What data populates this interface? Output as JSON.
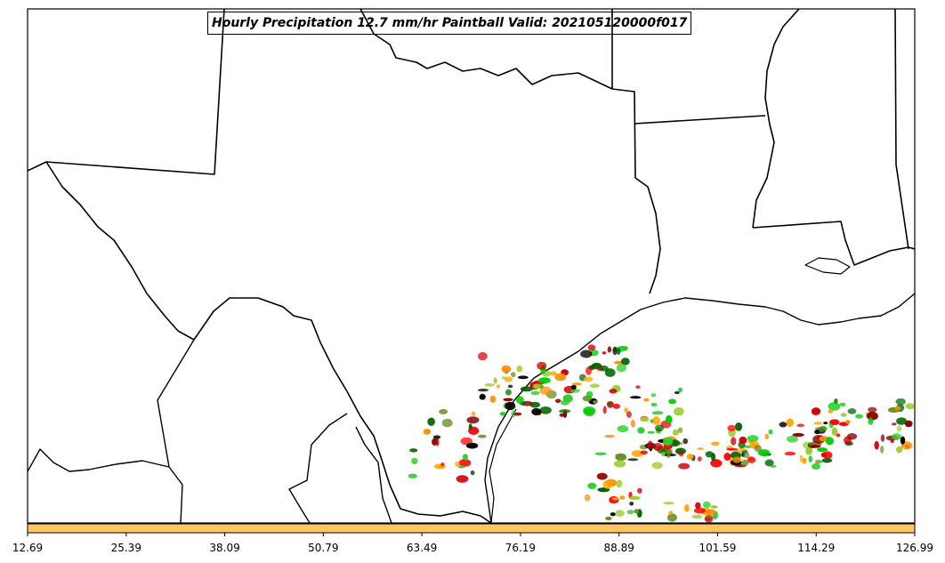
{
  "title": "Hourly Precipitation 12.7 mm/hr Paintball Valid: 202105120000f017",
  "colorbar": {
    "color": "#ffc466",
    "ticks": [
      "12.69",
      "25.39",
      "38.09",
      "50.79",
      "63.49",
      "76.19",
      "88.89",
      "101.59",
      "114.29",
      "126.99"
    ]
  },
  "colors": {
    "boundary": "#000000",
    "member_palette": [
      "#ff0000",
      "#cc0000",
      "#8b0000",
      "#ff8c00",
      "#ffa500",
      "#6b8e23",
      "#9acd32",
      "#006400",
      "#00cc00",
      "#32cd32",
      "#000000"
    ]
  },
  "chart_data": {
    "type": "map",
    "title": "Hourly Precipitation 12.7 mm/hr Paintball Valid: 202105120000f017",
    "xlabel": "",
    "ylabel": "",
    "colorbar_ticks": [
      12.69,
      25.39,
      38.09,
      50.79,
      63.49,
      76.19,
      88.89,
      101.59,
      114.29,
      126.99
    ],
    "colorbar_range": [
      12.69,
      126.99
    ],
    "grid": false,
    "legend": "none"
  }
}
